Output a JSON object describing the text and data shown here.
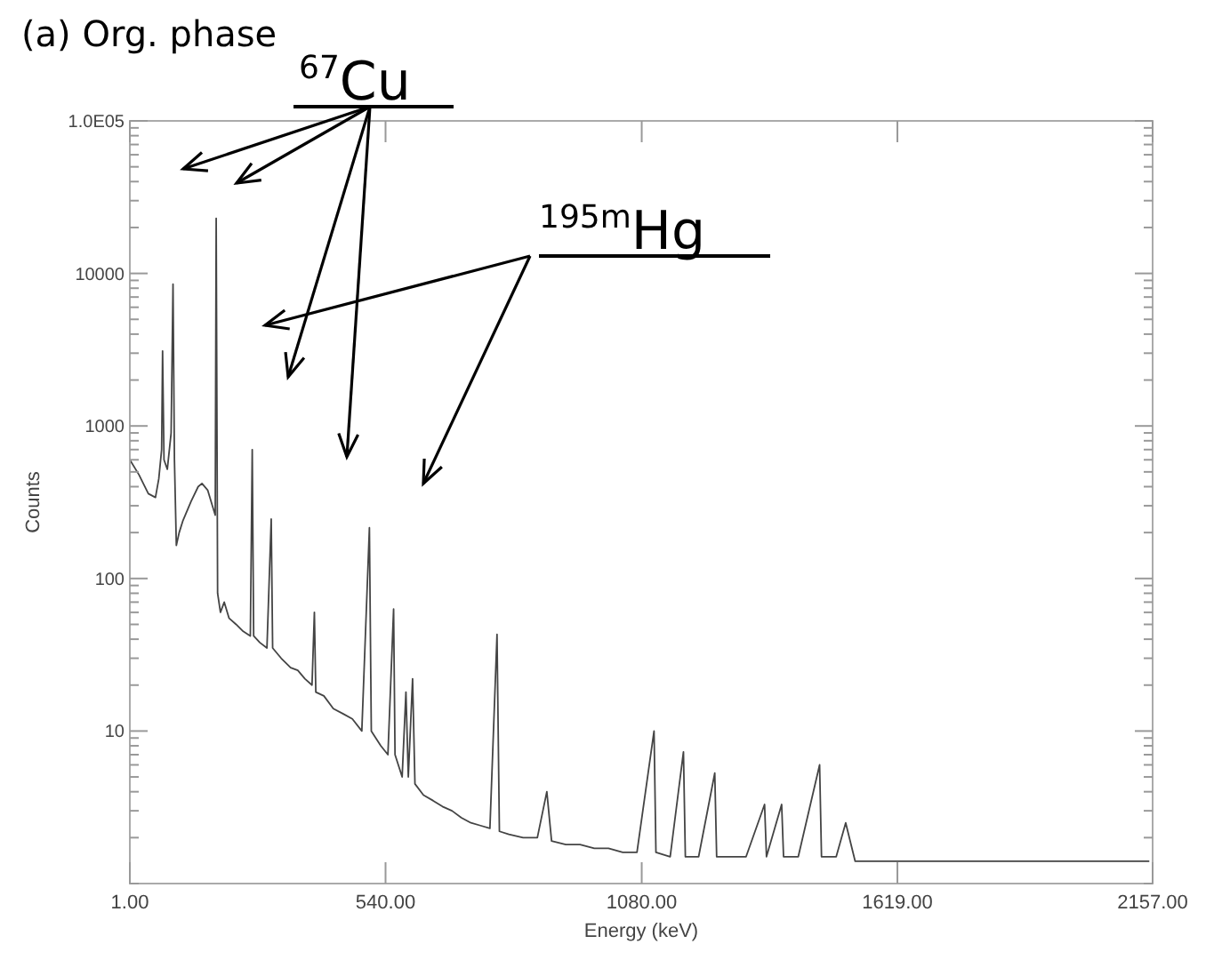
{
  "chart_data": {
    "type": "line",
    "title": "(a) Org. phase",
    "xlabel": "Energy (keV)",
    "ylabel": "Counts",
    "log": "y",
    "grid": false,
    "annotations": [
      "$^{67}$Cu",
      "$^{195m}$Hg"
    ],
    "xlim": [
      1,
      2157
    ],
    "xticks": [
      {
        "value": 1,
        "label": "1.00"
      },
      {
        "value": 540,
        "label": "540.00"
      },
      {
        "value": 1080,
        "label": "1080.00"
      },
      {
        "value": 1619,
        "label": "1619.00"
      },
      {
        "value": 2157,
        "label": "2157.00"
      }
    ],
    "ylim": [
      1,
      100000
    ],
    "yticks": [
      {
        "value": 1,
        "label": null
      },
      {
        "value": 2,
        "label": null
      },
      {
        "value": 3,
        "label": null
      },
      {
        "value": 4,
        "label": null
      },
      {
        "value": 5,
        "label": null
      },
      {
        "value": 6,
        "label": null
      },
      {
        "value": 7,
        "label": null
      },
      {
        "value": 8,
        "label": null
      },
      {
        "value": 9,
        "label": null
      },
      10,
      {
        "value": 20,
        "label": null
      },
      {
        "value": 30,
        "label": null
      },
      {
        "value": 40,
        "label": null
      },
      {
        "value": 50,
        "label": null
      },
      {
        "value": 60,
        "label": null
      },
      {
        "value": 70,
        "label": null
      },
      {
        "value": 80,
        "label": null
      },
      {
        "value": 90,
        "label": null
      },
      100,
      {
        "value": 200,
        "label": null
      },
      {
        "value": 300,
        "label": null
      },
      {
        "value": 400,
        "label": null
      },
      {
        "value": 500,
        "label": null
      },
      {
        "value": 600,
        "label": null
      },
      {
        "value": 700,
        "label": null
      },
      {
        "value": 800,
        "label": null
      },
      {
        "value": 900,
        "label": null
      },
      1000,
      {
        "value": 2000,
        "label": null
      },
      {
        "value": 3000,
        "label": null
      },
      {
        "value": 4000,
        "label": null
      },
      {
        "value": 5000,
        "label": null
      },
      {
        "value": 6000,
        "label": null
      },
      {
        "value": 7000,
        "label": null
      },
      {
        "value": 8000,
        "label": null
      },
      {
        "value": 9000,
        "label": null
      },
      10000,
      {
        "value": 20000,
        "label": null
      },
      {
        "value": 30000,
        "label": null
      },
      {
        "value": 40000,
        "label": null
      },
      {
        "value": 50000,
        "label": null
      },
      {
        "value": 60000,
        "label": null
      },
      {
        "value": 70000,
        "label": null
      },
      {
        "value": 80000,
        "label": null
      },
      {
        "value": 90000,
        "label": null
      },
      {
        "value": 100000,
        "label": "1.0E05"
      }
    ],
    "series": [
      {
        "color": "#444444",
        "x": [
          1,
          20,
          40,
          55,
          62,
          68,
          70,
          73,
          80,
          88,
          92,
          95,
          99,
          105,
          113,
          130,
          145,
          153,
          165,
          175,
          181,
          183,
          186,
          192,
          200,
          210,
          225,
          240,
          255,
          259,
          262,
          275,
          290,
          299,
          302,
          320,
          340,
          355,
          370,
          385,
          390,
          393,
          410,
          430,
          450,
          470,
          490,
          506,
          510,
          530,
          545,
          557,
          560,
          575,
          583,
          588,
          597,
          602,
          620,
          640,
          660,
          680,
          700,
          720,
          740,
          760,
          775,
          780,
          800,
          830,
          860,
          880,
          890,
          920,
          950,
          980,
          1010,
          1040,
          1070,
          1106,
          1110,
          1140,
          1168,
          1172,
          1200,
          1234,
          1238,
          1270,
          1300,
          1339,
          1343,
          1375,
          1379,
          1410,
          1455,
          1459,
          1490,
          1510,
          1530,
          1600,
          1680,
          1760,
          1840,
          1920,
          2000,
          2080,
          2150
        ],
        "values": [
          600,
          480,
          360,
          340,
          450,
          700,
          3100,
          600,
          520,
          900,
          8500,
          600,
          165,
          200,
          240,
          320,
          400,
          420,
          380,
          300,
          260,
          23000,
          80,
          60,
          70,
          55,
          50,
          45,
          42,
          700,
          42,
          38,
          35,
          245,
          35,
          30,
          26,
          25,
          22,
          20,
          60,
          18,
          17,
          14,
          13,
          12,
          10,
          215,
          10,
          8,
          7,
          63,
          7,
          5,
          18,
          5,
          22,
          4.5,
          3.8,
          3.5,
          3.2,
          3,
          2.7,
          2.5,
          2.4,
          2.3,
          43,
          2.2,
          2.1,
          2,
          2,
          4,
          1.9,
          1.8,
          1.8,
          1.7,
          1.7,
          1.6,
          1.6,
          10,
          1.6,
          1.5,
          7.3,
          1.5,
          1.5,
          5.3,
          1.5,
          1.5,
          1.5,
          3.3,
          1.5,
          3.3,
          1.5,
          1.5,
          6,
          1.5,
          1.5,
          2.5,
          1.4,
          1.4,
          1.4,
          1.4,
          1.4,
          1.4,
          1.4,
          1.4,
          1.4
        ]
      }
    ]
  }
}
